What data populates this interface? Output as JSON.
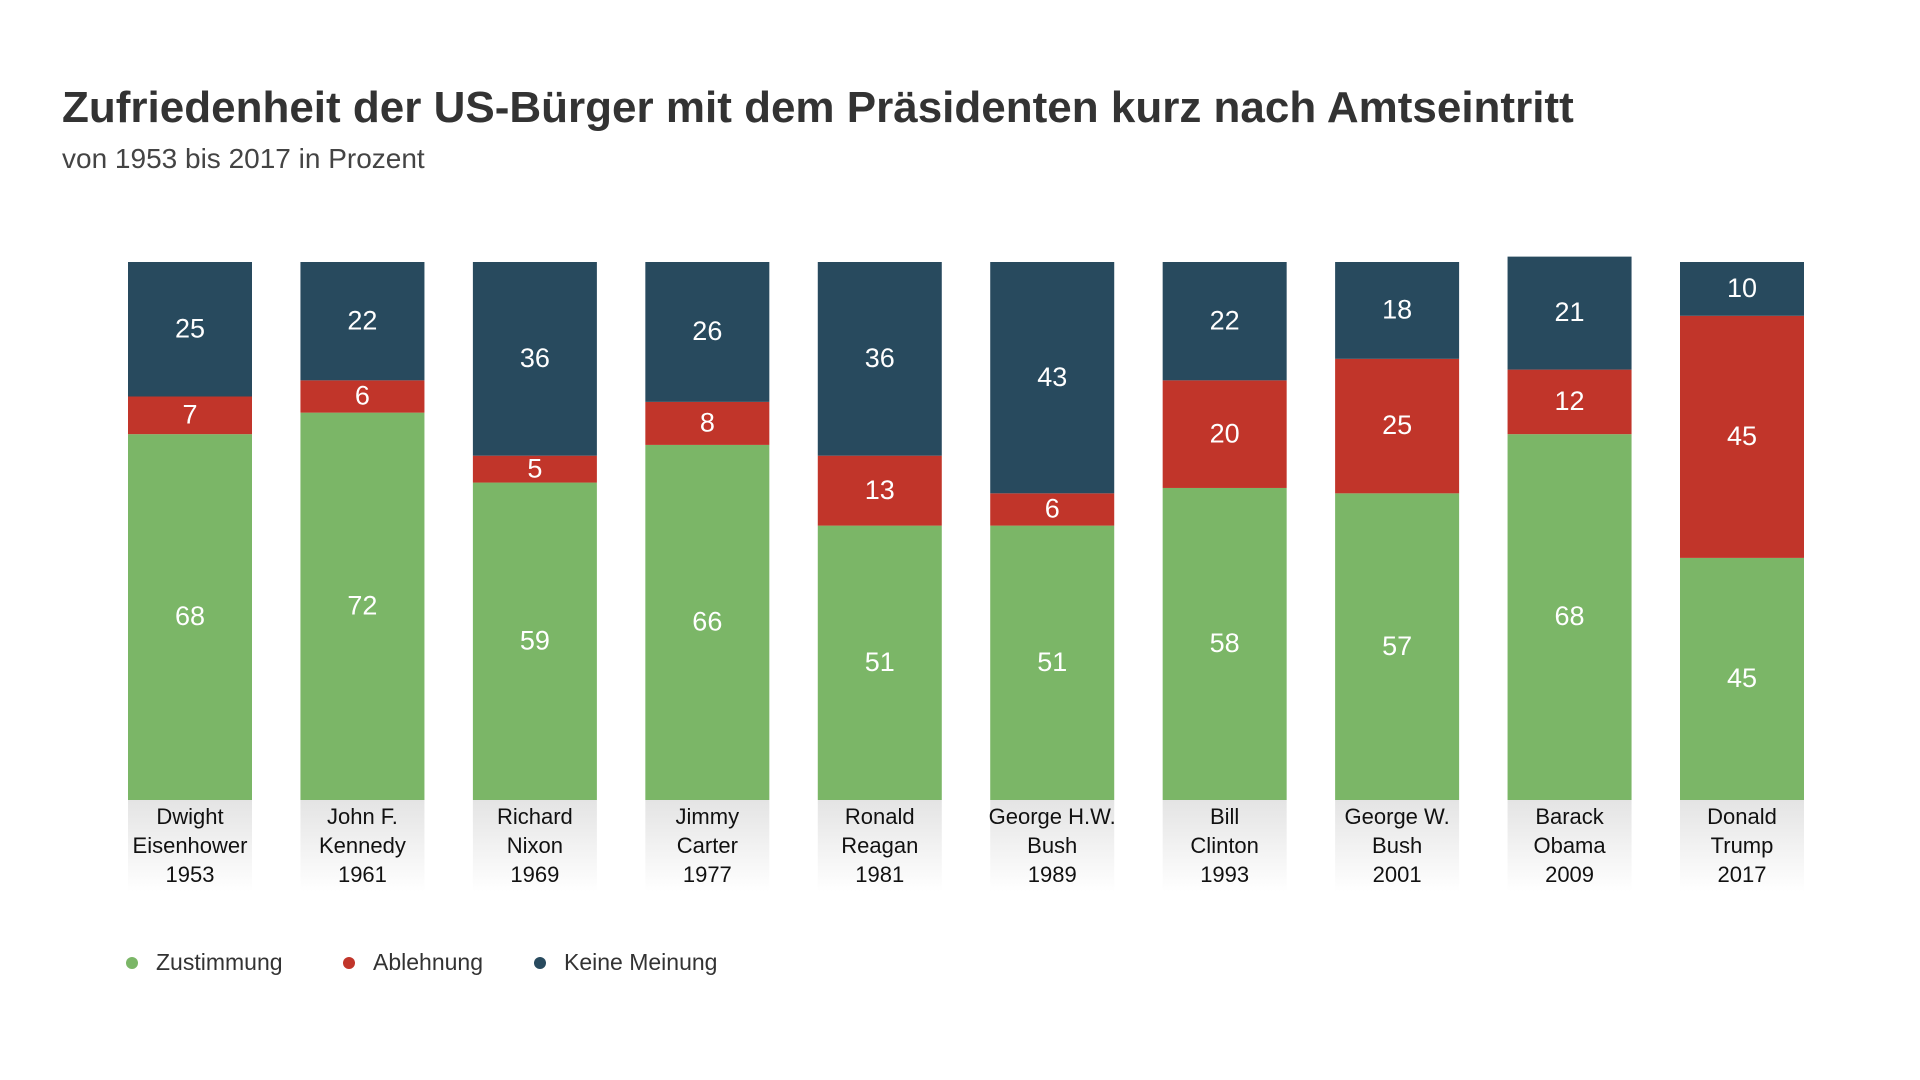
{
  "chart_data": {
    "type": "stacked-bar",
    "title": "Zufriedenheit der US-Bürger mit dem Präsidenten kurz nach Amtseintritt",
    "subtitle": "von 1953 bis 2017 in Prozent",
    "categories": [
      [
        "Dwight",
        "Eisenhower",
        "1953"
      ],
      [
        "John F.",
        "Kennedy",
        "1961"
      ],
      [
        "Richard",
        "Nixon",
        "1969"
      ],
      [
        "Jimmy",
        "Carter",
        "1977"
      ],
      [
        "Ronald",
        "Reagan",
        "1981"
      ],
      [
        "George H.W.",
        "Bush",
        "1989"
      ],
      [
        "Bill",
        "Clinton",
        "1993"
      ],
      [
        "George W.",
        "Bush",
        "2001"
      ],
      [
        "Barack",
        "Obama",
        "2009"
      ],
      [
        "Donald",
        "Trump",
        "2017"
      ]
    ],
    "series": [
      {
        "name": "Zustimmung",
        "color": "#7bb667",
        "values": [
          68,
          72,
          59,
          66,
          51,
          51,
          58,
          57,
          68,
          45
        ]
      },
      {
        "name": "Ablehnung",
        "color": "#c1352a",
        "values": [
          7,
          6,
          5,
          8,
          13,
          6,
          20,
          25,
          12,
          45
        ]
      },
      {
        "name": "Keine Meinung",
        "color": "#284a5e",
        "values": [
          25,
          22,
          36,
          26,
          36,
          43,
          22,
          18,
          21,
          10
        ]
      }
    ],
    "ylim": [
      0,
      100
    ]
  }
}
